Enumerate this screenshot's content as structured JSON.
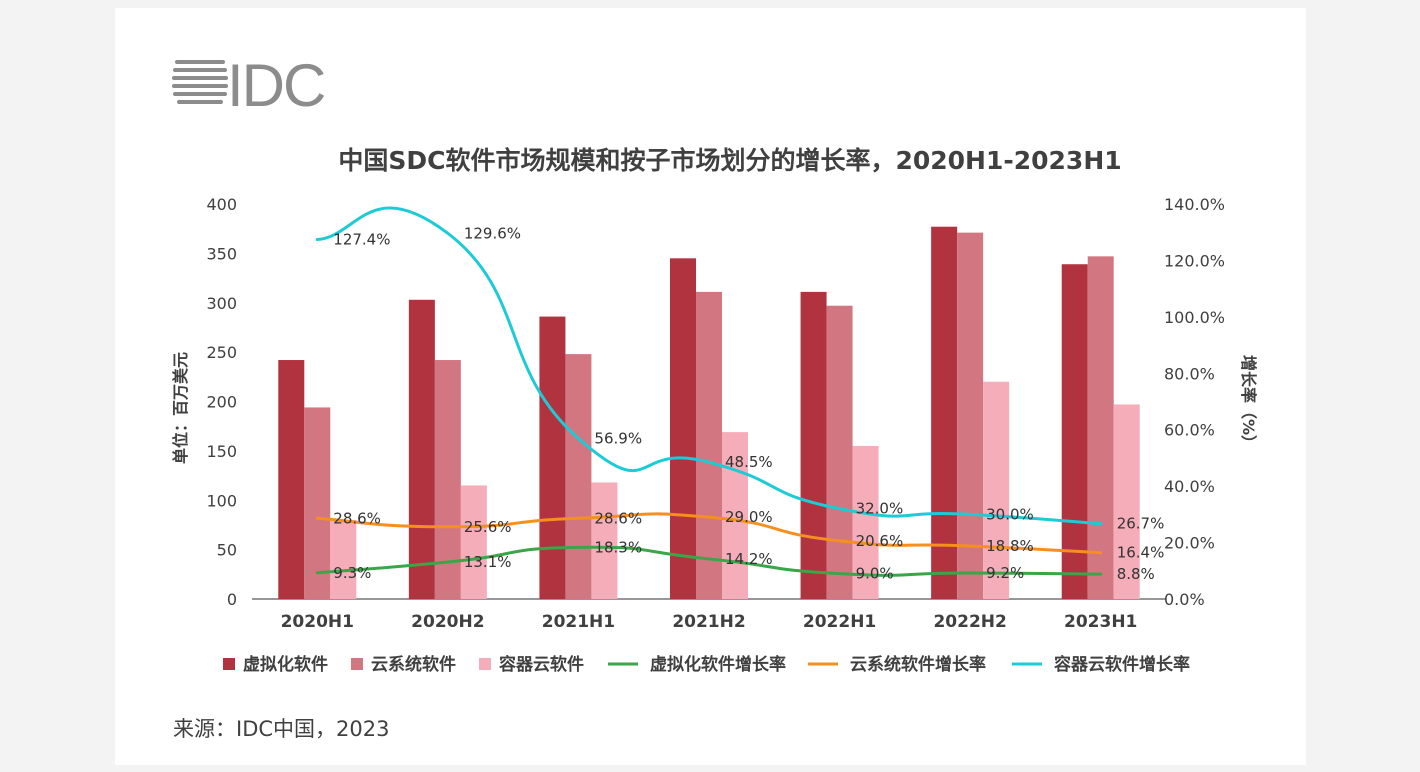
{
  "logo": {
    "text": "IDC"
  },
  "source": "来源：IDC中国，2023",
  "colors": {
    "virt": "#b0333f",
    "cloud_os": "#d27782",
    "container": "#f6adba",
    "virt_growth": "#3aa647",
    "cloud_os_growth": "#f5901e",
    "container_growth": "#1ccbd6",
    "axis": "#595959",
    "text": "#404040"
  },
  "chart_data": {
    "type": "bar",
    "title": "中国SDC软件市场规模和按子市场划分的增长率，2020H1-2023H1",
    "ylabel": "单位：百万美元",
    "y2label": "增长率（%）",
    "ylim": [
      0,
      400
    ],
    "y2lim": [
      0,
      140
    ],
    "yticks": [
      "0",
      "50",
      "100",
      "150",
      "200",
      "250",
      "300",
      "350",
      "400"
    ],
    "y2ticks": [
      "0.0%",
      "20.0%",
      "40.0%",
      "60.0%",
      "80.0%",
      "100.0%",
      "120.0%",
      "140.0%"
    ],
    "categories": [
      "2020H1",
      "2020H2",
      "2021H1",
      "2021H2",
      "2022H1",
      "2022H2",
      "2023H1"
    ],
    "bar_series": [
      {
        "name": "虚拟化软件",
        "values": [
          242,
          303,
          286,
          345,
          311,
          377,
          339
        ]
      },
      {
        "name": "云系统软件",
        "values": [
          194,
          242,
          248,
          311,
          297,
          371,
          347
        ]
      },
      {
        "name": "容器云软件",
        "values": [
          80,
          115,
          118,
          169,
          155,
          220,
          197
        ]
      }
    ],
    "line_series": [
      {
        "name": "虚拟化软件增长率",
        "values": [
          9.3,
          13.1,
          18.3,
          14.2,
          9.0,
          9.2,
          8.8
        ],
        "labels": [
          "9.3%",
          "13.1%",
          "18.3%",
          "14.2%",
          "9.0%",
          "9.2%",
          "8.8%"
        ]
      },
      {
        "name": "云系统软件增长率",
        "values": [
          28.6,
          25.6,
          28.6,
          29.0,
          20.6,
          18.8,
          16.4
        ],
        "labels": [
          "28.6%",
          "25.6%",
          "28.6%",
          "29.0%",
          "20.6%",
          "18.8%",
          "16.4%"
        ]
      },
      {
        "name": "容器云软件增长率",
        "values": [
          127.4,
          129.6,
          56.9,
          48.5,
          32.0,
          30.0,
          26.7
        ],
        "labels": [
          "127.4%",
          "129.6%",
          "56.9%",
          "48.5%",
          "32.0%",
          "30.0%",
          "26.7%"
        ]
      }
    ],
    "legend_position": "bottom",
    "grid": false
  }
}
